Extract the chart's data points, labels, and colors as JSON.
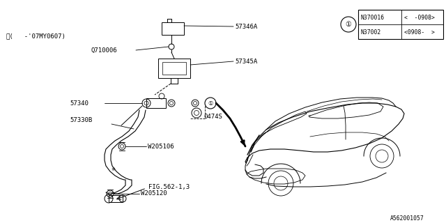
{
  "bg_color": "#ffffff",
  "fig_width": 6.4,
  "fig_height": 3.2,
  "dpi": 100,
  "line_color": "#000000",
  "text_color": "#000000",
  "font_size": 6.5,
  "small_font_size": 5.8,
  "diagram_id": "A562001057",
  "footnote": "※(     -’07MY0607)",
  "table": {
    "rows": [
      {
        "part": "N370016",
        "range": "<  -0908>"
      },
      {
        "part": "N37002",
        "range": "<0908-  >"
      }
    ]
  }
}
